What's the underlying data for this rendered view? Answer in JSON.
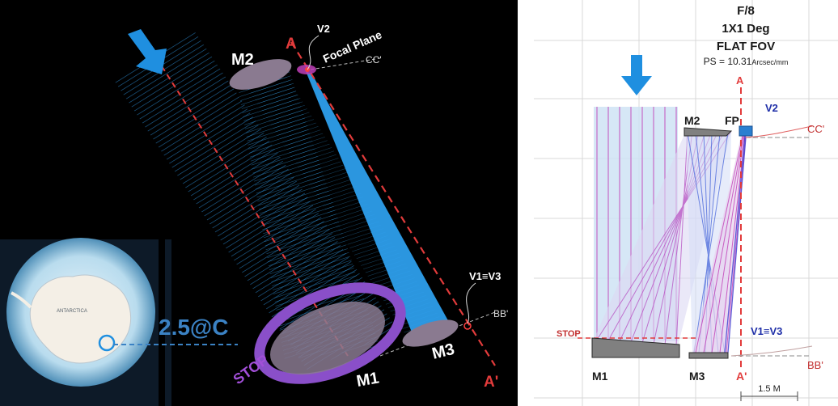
{
  "left": {
    "m2": "M2",
    "a_top": "A",
    "v2": "V2",
    "focal_plane": "Focal Plane",
    "cc": "CC'",
    "v1v3": "V1≡V3",
    "bb": "BB'",
    "m3": "M3",
    "a_bottom": "A'",
    "m1": "M1",
    "stop": "STOP",
    "site": "2.5@C",
    "map_title": "ANTARCTICA"
  },
  "right": {
    "f_ratio": "F/8",
    "fov_size": "1X1 Deg",
    "fov_type": "FLAT FOV",
    "ps_prefix": "PS = 10.31",
    "ps_unit": "Arcsec/mm",
    "a_top": "A",
    "m2": "M2",
    "fp": "FP",
    "v2": "V2",
    "cc": "CC'",
    "stop": "STOP",
    "v1v3": "V1≡V3",
    "m1": "M1",
    "m3": "M3",
    "a_bottom": "A'",
    "bb": "BB'",
    "scale": "1.5 M"
  },
  "colors": {
    "beam_blue": "#33aaff",
    "axis_red": "#e23b3b",
    "mirror_gray": "#8a7a90",
    "stop_purple": "#8a4fc9",
    "arrow_blue": "#1f8fe0",
    "ray_magenta": "#c23fb8",
    "ray_blue": "#3a5bd8"
  }
}
